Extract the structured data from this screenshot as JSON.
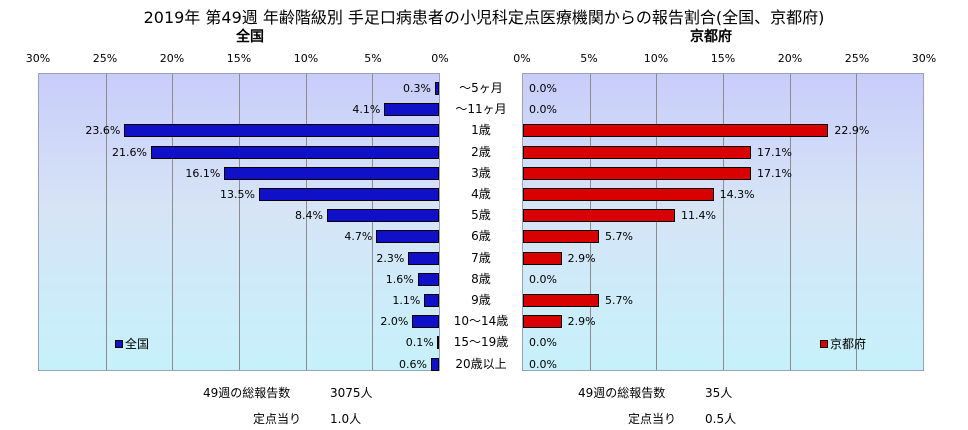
{
  "title": "2019年 第49週 年齢階級別 手足口病患者の小児科定点医療機関からの報告割合(全国、京都府)",
  "left_subtitle": "全国",
  "right_subtitle": "京都府",
  "colors": {
    "nation": "#1010c8",
    "kyoto": "#d80000"
  },
  "chart_data": [
    {
      "type": "bar",
      "orientation": "horizontal",
      "direction": "right-to-left",
      "title": "全国",
      "categories": [
        "～5ヶ月",
        "～11ヶ月",
        "1歳",
        "2歳",
        "3歳",
        "4歳",
        "5歳",
        "6歳",
        "7歳",
        "8歳",
        "9歳",
        "10～14歳",
        "15～19歳",
        "20歳以上"
      ],
      "series": [
        {
          "name": "全国",
          "values": [
            0.3,
            4.1,
            23.6,
            21.6,
            16.1,
            13.5,
            8.4,
            4.7,
            2.3,
            1.6,
            1.1,
            2.0,
            0.1,
            0.6
          ]
        }
      ],
      "value_labels": [
        "0.3%",
        "4.1%",
        "23.6%",
        "21.6%",
        "16.1%",
        "13.5%",
        "8.4%",
        "4.7%",
        "2.3%",
        "1.6%",
        "1.1%",
        "2.0%",
        "0.1%",
        "0.6%"
      ],
      "ticks": [
        "30%",
        "25%",
        "20%",
        "15%",
        "10%",
        "5%",
        "0%"
      ],
      "xlim": [
        0,
        30
      ],
      "grid": true,
      "legend": "bottom-left"
    },
    {
      "type": "bar",
      "orientation": "horizontal",
      "direction": "left-to-right",
      "title": "京都府",
      "categories": [
        "～5ヶ月",
        "～11ヶ月",
        "1歳",
        "2歳",
        "3歳",
        "4歳",
        "5歳",
        "6歳",
        "7歳",
        "8歳",
        "9歳",
        "10～14歳",
        "15～19歳",
        "20歳以上"
      ],
      "series": [
        {
          "name": "京都府",
          "values": [
            0.0,
            0.0,
            22.9,
            17.1,
            17.1,
            14.3,
            11.4,
            5.7,
            2.9,
            0.0,
            5.7,
            2.9,
            0.0,
            0.0
          ]
        }
      ],
      "value_labels": [
        "0.0%",
        "0.0%",
        "22.9%",
        "17.1%",
        "17.1%",
        "14.3%",
        "11.4%",
        "5.7%",
        "2.9%",
        "0.0%",
        "5.7%",
        "2.9%",
        "0.0%",
        "0.0%"
      ],
      "ticks": [
        "0%",
        "5%",
        "10%",
        "15%",
        "20%",
        "25%",
        "30%"
      ],
      "xlim": [
        0,
        30
      ],
      "grid": true,
      "legend": "bottom-right"
    }
  ],
  "footer": {
    "nation_total_label": "49週の総報告数",
    "nation_total_value": "3075人",
    "nation_per_site_label": "定点当り",
    "nation_per_site_value": "1.0人",
    "kyoto_total_label": "49週の総報告数",
    "kyoto_total_value": "35人",
    "kyoto_per_site_label": "定点当り",
    "kyoto_per_site_value": "0.5人"
  }
}
